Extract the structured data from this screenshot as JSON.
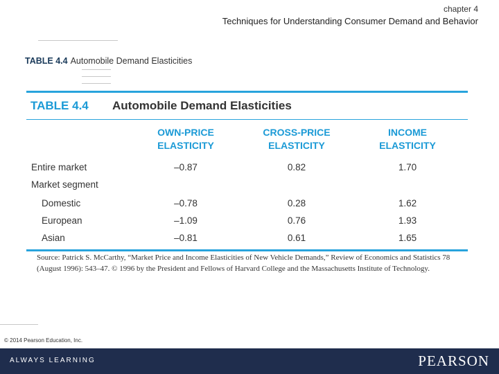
{
  "header": {
    "chapter": "chapter 4",
    "title": "Techniques for Understanding Consumer Demand and Behavior"
  },
  "caption": {
    "number": "TABLE 4.4",
    "text": "Automobile Demand Elasticities"
  },
  "table": {
    "number": "TABLE 4.4",
    "title": "Automobile Demand Elasticities",
    "columns": [
      {
        "line1": "OWN-PRICE",
        "line2": "ELASTICITY"
      },
      {
        "line1": "CROSS-PRICE",
        "line2": "ELASTICITY"
      },
      {
        "line1": "INCOME",
        "line2": "ELASTICITY"
      }
    ],
    "rows": [
      {
        "label": "Entire market",
        "values": [
          "–0.87",
          "0.82",
          "1.70"
        ]
      },
      {
        "label": "Market segment",
        "values": [
          "",
          "",
          ""
        ]
      },
      {
        "label": "Domestic",
        "values": [
          "–0.78",
          "0.28",
          "1.62"
        ]
      },
      {
        "label": "European",
        "values": [
          "–1.09",
          "0.76",
          "1.93"
        ]
      },
      {
        "label": "Asian",
        "values": [
          "–0.81",
          "0.61",
          "1.65"
        ]
      }
    ],
    "source": "Source: Patrick S. McCarthy, “Market Price and Income Elasticities of New Vehicle Demands,” Review of Economics and Statistics 78 (August 1996): 543–47. © 1996 by the President and Fellows of Harvard College and the Massachusetts Institute of Technology."
  },
  "copyright": "© 2014 Pearson Education, Inc.",
  "footer": {
    "tagline": "ALWAYS LEARNING",
    "brand": "PEARSON"
  },
  "colors": {
    "accent": "#28a3dc",
    "footer_bg": "#1f2d4d"
  }
}
